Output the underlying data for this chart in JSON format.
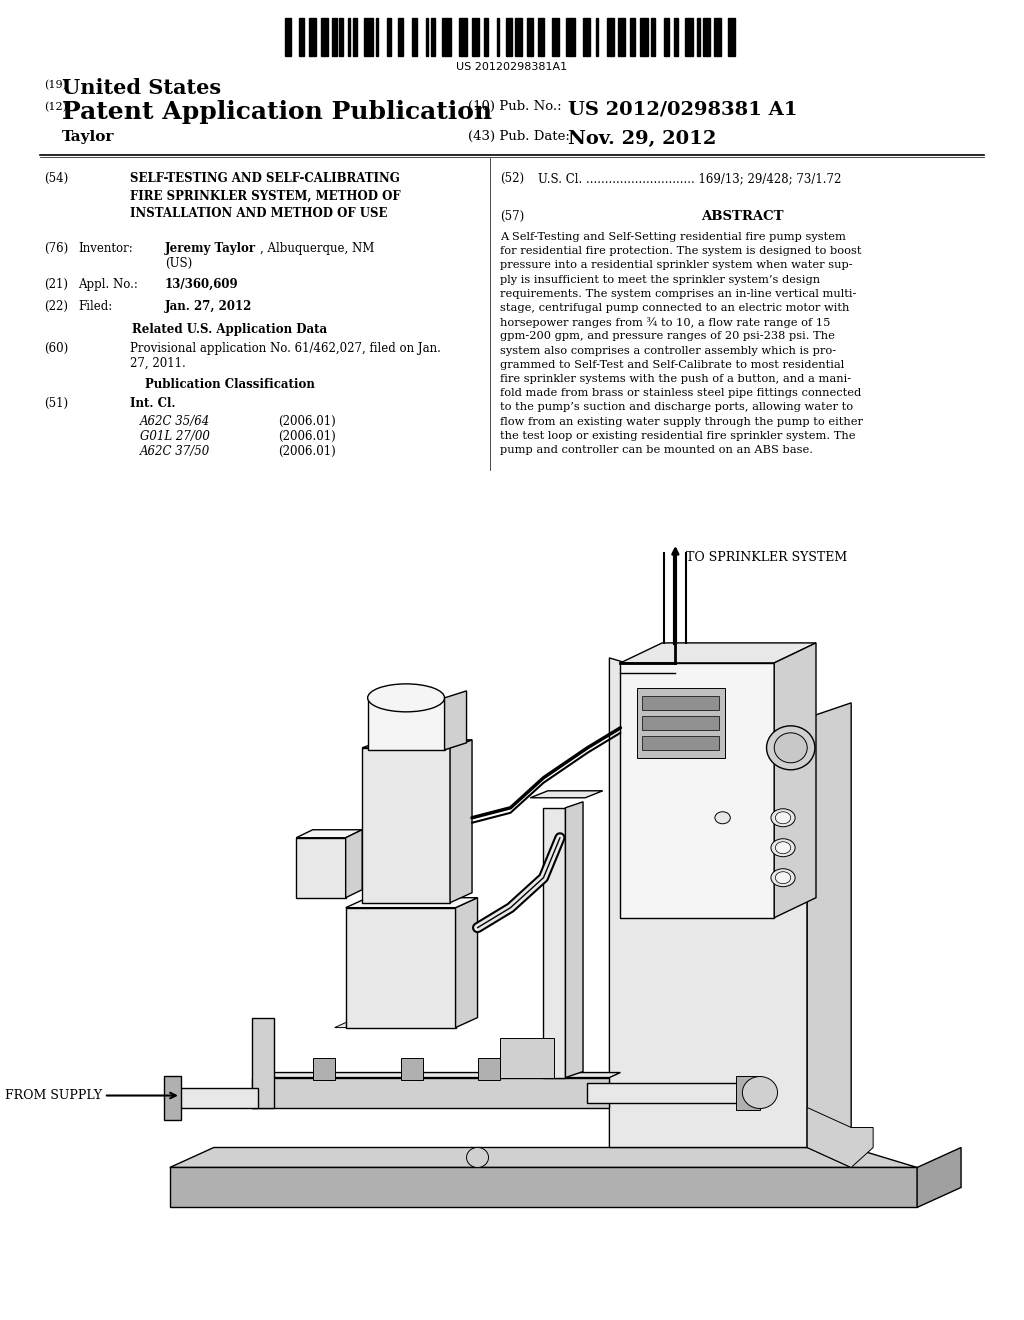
{
  "background_color": "#ffffff",
  "barcode_text": "US 20120298381A1",
  "header_19": "(19)",
  "header_19_text": "United States",
  "header_12": "(12)",
  "header_12_text": "Patent Application Publication",
  "header_10_label": "(10) Pub. No.:",
  "header_10_value": "US 2012/0298381 A1",
  "header_taylor": "Taylor",
  "header_43_label": "(43) Pub. Date:",
  "header_43_value": "Nov. 29, 2012",
  "section_54_num": "(54)",
  "section_54_text": "SELF-TESTING AND SELF-CALIBRATING\nFIRE SPRINKLER SYSTEM, METHOD OF\nINSTALLATION AND METHOD OF USE",
  "section_52_num": "(52)",
  "section_52_text": "U.S. Cl. ............................. 169/13; 29/428; 73/1.72",
  "section_76_num": "(76)",
  "section_76_label": "Inventor:",
  "section_76_name_bold": "Jeremy Taylor",
  "section_76_name_rest": ", Albuquerque, NM",
  "section_76_name_rest2": "(US)",
  "section_21_num": "(21)",
  "section_21_label": "Appl. No.:",
  "section_21_value": "13/360,609",
  "section_22_num": "(22)",
  "section_22_label": "Filed:",
  "section_22_value": "Jan. 27, 2012",
  "related_header": "Related U.S. Application Data",
  "section_60_num": "(60)",
  "section_60_line1": "Provisional application No. 61/462,027, filed on Jan.",
  "section_60_line2": "27, 2011.",
  "pub_class_header": "Publication Classification",
  "section_51_num": "(51)",
  "section_51_label": "Int. Cl.",
  "section_51_rows": [
    [
      "A62C 35/64",
      "(2006.01)"
    ],
    [
      "G01L 27/00",
      "(2006.01)"
    ],
    [
      "A62C 37/50",
      "(2006.01)"
    ]
  ],
  "section_57_num": "(57)",
  "section_57_header": "ABSTRACT",
  "abstract_lines": [
    "A Self-Testing and Self-Setting residential fire pump system",
    "for residential fire protection. The system is designed to boost",
    "pressure into a residential sprinkler system when water sup-",
    "ply is insufficient to meet the sprinkler system’s design",
    "requirements. The system comprises an in-line vertical multi-",
    "stage, centrifugal pump connected to an electric motor with",
    "horsepower ranges from ¾ to 10, a flow rate range of 15",
    "gpm-200 gpm, and pressure ranges of 20 psi-238 psi. The",
    "system also comprises a controller assembly which is pro-",
    "grammed to Self-Test and Self-Calibrate to most residential",
    "fire sprinkler systems with the push of a button, and a mani-",
    "fold made from brass or stainless steel pipe fittings connected",
    "to the pump’s suction and discharge ports, allowing water to",
    "flow from an existing water supply through the pump to either",
    "the test loop or existing residential fire sprinkler system. The",
    "pump and controller can be mounted on an ABS base."
  ],
  "label_from_supply": "FROM SUPPLY",
  "label_to_sprinkler": "TO SPRINKLER SYSTEM"
}
